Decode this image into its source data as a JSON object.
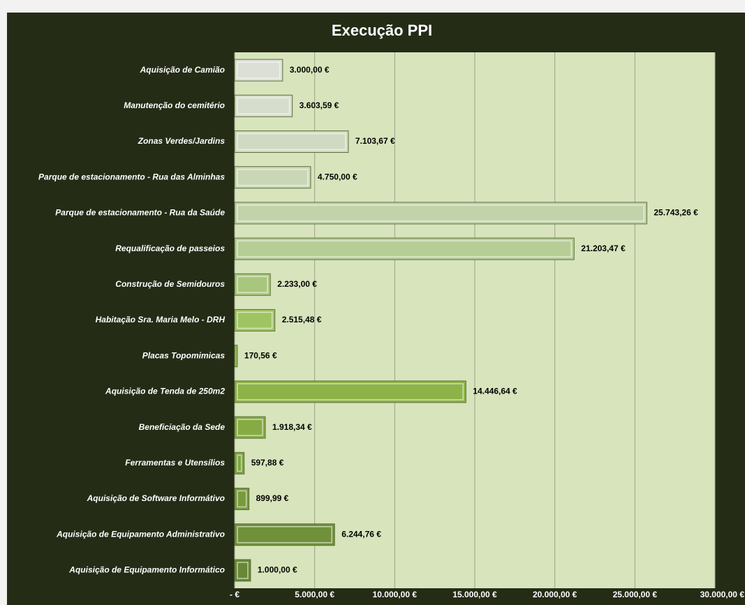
{
  "chart_data": {
    "type": "barh",
    "title": "Execução PPI",
    "categories": [
      "Aquisição de Camião",
      "Manutenção do cemitério",
      "Zonas Verdes/Jardins",
      "Parque de estacionamento - Rua das Alminhas",
      "Parque de estacionamento - Rua da Saúde",
      "Requalificação de passeios",
      "Construção de Semidouros",
      "Habitação Sra. Maria Melo - DRH",
      "Placas Topomimicas",
      "Aquisição de Tenda de 250m2",
      "Beneficiação da Sede",
      "Ferramentas e Utensílios",
      "Aquisição de Software Informátivo",
      "Aquisição de Equipamento Administrativo",
      "Aquisição de Equipamento Informático"
    ],
    "values": [
      3000,
      3603.59,
      7103.67,
      4750,
      25743.26,
      21203.47,
      2233,
      2515.48,
      170.56,
      14446.64,
      1918.34,
      597.88,
      899.99,
      6244.76,
      1000
    ],
    "value_labels": [
      "3.000,00 €",
      "3.603,59 €",
      "7.103,67 €",
      "4.750,00 €",
      "25.743,26 €",
      "21.203,47 €",
      "2.233,00 €",
      "2.515,48 €",
      "170,56 €",
      "14.446,64 €",
      "1.918,34 €",
      "597,88 €",
      "899,99 €",
      "6.244,76 €",
      "1.000,00 €"
    ],
    "colors": [
      "#dcdfd5",
      "#d7ddcc",
      "#d0dac2",
      "#cad7b7",
      "#c2d3aa",
      "#b6cd96",
      "#a8c77d",
      "#9fc462",
      "#95bd53",
      "#8db348",
      "#86ab44",
      "#7fa341",
      "#789a3d",
      "#709139",
      "#688835"
    ],
    "xlim": [
      0,
      30000
    ],
    "xticks": [
      {
        "value": 0,
        "label": "-   €"
      },
      {
        "value": 5000,
        "label": "5.000,00 €"
      },
      {
        "value": 10000,
        "label": "10.000,00 €"
      },
      {
        "value": 15000,
        "label": "15.000,00 €"
      },
      {
        "value": 20000,
        "label": "20.000,00 €"
      },
      {
        "value": 25000,
        "label": "25.000,00 €"
      },
      {
        "value": 30000,
        "label": "30.000,00 €"
      }
    ],
    "grid": true
  }
}
